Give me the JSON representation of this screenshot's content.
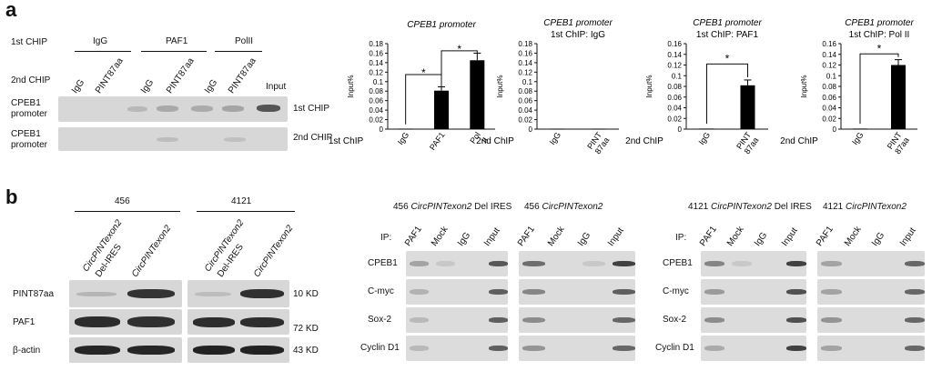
{
  "panel_a": {
    "letter": "a",
    "row1_label": "1st CHIP",
    "row2_label": "2nd CHIP",
    "groups": [
      "IgG",
      "PAF1",
      "PolII"
    ],
    "lanes": [
      "IgG",
      "PINT87aa",
      "IgG",
      "PINT87aa",
      "IgG",
      "PINT87aa"
    ],
    "input_label": "Input",
    "blot1_label": "CPEB1 promoter",
    "blot1_side": "1st CHIP",
    "blot2_label": "CPEB1 promoter",
    "blot2_side": "2nd CHIP"
  },
  "panel_b": {
    "letter": "b",
    "western": {
      "cells": [
        "456",
        "4121"
      ],
      "lane1": "CircPINTexon2",
      "lane1b": "Del-IRES",
      "lane2": "CircPINTexon2",
      "rows": [
        "PINT87aa",
        "PAF1",
        "β-actin"
      ],
      "kd": [
        "10 KD",
        "72 KD",
        "43 KD"
      ]
    },
    "chip": {
      "titles": [
        {
          "prefix": "456 ",
          "ital": "CircPINTexon2",
          "suffix": " Del IRES"
        },
        {
          "prefix": "456 ",
          "ital": "CircPINTexon2",
          "suffix": ""
        },
        {
          "prefix": "4121 ",
          "ital": "CircPINTexon2",
          "suffix": " Del IRES"
        },
        {
          "prefix": "4121 ",
          "ital": "CircPINTexon2",
          "suffix": ""
        }
      ],
      "ip_label": "IP:",
      "lanes": [
        "PAF1",
        "Mock",
        "IgG",
        "Input"
      ],
      "rows": [
        "CPEB1",
        "C-myc",
        "Sox-2",
        "Cyclin D1"
      ]
    }
  },
  "chart_data": [
    {
      "type": "bar",
      "title": "CPEB1 promoter",
      "ylabel": "Input%",
      "xlabel_left": "1st ChIP",
      "categories": [
        "IgG",
        "PAF1",
        "Pol II"
      ],
      "values": [
        0.001,
        0.081,
        0.145
      ],
      "errors": [
        0.0,
        0.008,
        0.015
      ],
      "ylim": [
        0,
        0.18
      ],
      "yticks": [
        "0",
        "0.02",
        "0.04",
        "0.06",
        "0.08",
        "0.1",
        "0.12",
        "0.14",
        "0.16",
        "0.18"
      ],
      "sig": [
        "*",
        "*"
      ]
    },
    {
      "type": "bar",
      "title": "CPEB1 promoter",
      "subtitle": "1st ChIP: IgG",
      "ylabel": "Input%",
      "xlabel_left": "2nd ChIP",
      "categories": [
        "IgG",
        "PINT 87aa"
      ],
      "values": [
        0.001,
        0.001
      ],
      "errors": [
        0.0,
        0.0
      ],
      "ylim": [
        0,
        0.18
      ],
      "yticks": [
        "0",
        "0.02",
        "0.04",
        "0.06",
        "0.08",
        "0.1",
        "0.12",
        "0.14",
        "0.16",
        "0.18"
      ],
      "sig": []
    },
    {
      "type": "bar",
      "title": "CPEB1 promoter",
      "subtitle": "1st ChIP: PAF1",
      "ylabel": "Input%",
      "xlabel_left": "2nd ChIP",
      "categories": [
        "IgG",
        "PINT 87aa"
      ],
      "values": [
        0.001,
        0.082
      ],
      "errors": [
        0.0,
        0.01
      ],
      "ylim": [
        0,
        0.16
      ],
      "yticks": [
        "0",
        "0.02",
        "0.04",
        "0.06",
        "0.08",
        "0.1",
        "0.12",
        "0.14",
        "0.16"
      ],
      "sig": [
        "*"
      ]
    },
    {
      "type": "bar",
      "title": "CPEB1 promoter",
      "subtitle": "1st ChIP: Pol II",
      "ylabel": "Input%",
      "xlabel_left": "2nd ChIP",
      "categories": [
        "IgG",
        "PINT 87aa"
      ],
      "values": [
        0.001,
        0.12
      ],
      "errors": [
        0.0,
        0.01
      ],
      "ylim": [
        0,
        0.16
      ],
      "yticks": [
        "0",
        "0.02",
        "0.04",
        "0.06",
        "0.08",
        "0.1",
        "0.12",
        "0.14",
        "0.16"
      ],
      "sig": [
        "*"
      ]
    }
  ]
}
